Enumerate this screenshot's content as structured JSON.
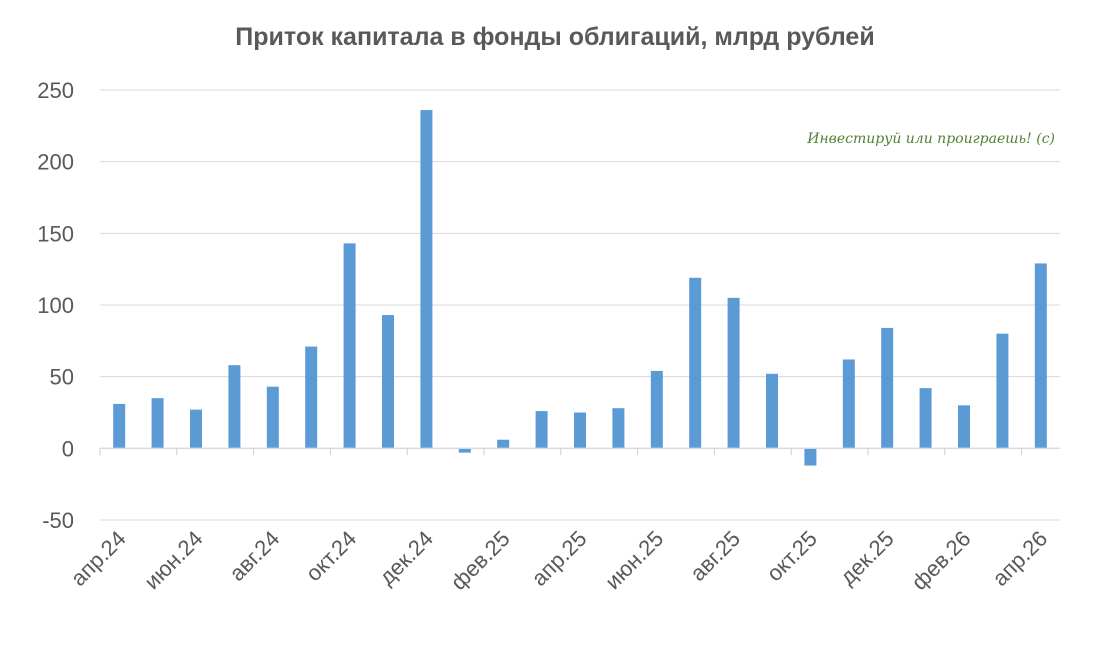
{
  "chart_data": {
    "type": "bar",
    "title": "Приток капитала в фонды облигаций, млрд рублей",
    "xlabel": "",
    "ylabel": "",
    "ylim": [
      -50,
      250
    ],
    "yticks": [
      250,
      200,
      150,
      100,
      50,
      0,
      -50
    ],
    "grid": true,
    "legend": "none",
    "bar_color": "#5b9bd5",
    "categories": [
      "апр.24",
      "май.24",
      "июн.24",
      "июл.24",
      "авг.24",
      "сен.24",
      "окт.24",
      "ноя.24",
      "дек.24",
      "янв.25",
      "фев.25",
      "мар.25",
      "апр.25",
      "май.25",
      "июн.25",
      "июл.25",
      "авг.25",
      "сен.25",
      "окт.25",
      "ноя.25",
      "дек.25",
      "янв.26",
      "фев.26",
      "мар.26",
      "апр.26"
    ],
    "xtick_labels": [
      "апр.24",
      "июн.24",
      "авг.24",
      "окт.24",
      "дек.24",
      "фев.25",
      "апр.25",
      "июн.25",
      "авг.25",
      "окт.25",
      "дек.25",
      "фев.26",
      "апр.26"
    ],
    "values": [
      31,
      35,
      27,
      58,
      43,
      71,
      143,
      93,
      236,
      -3,
      6,
      26,
      25,
      28,
      54,
      119,
      105,
      52,
      -12,
      62,
      84,
      42,
      30,
      80,
      129
    ]
  },
  "watermark": "Инвестируй или проиграешь! (с)"
}
